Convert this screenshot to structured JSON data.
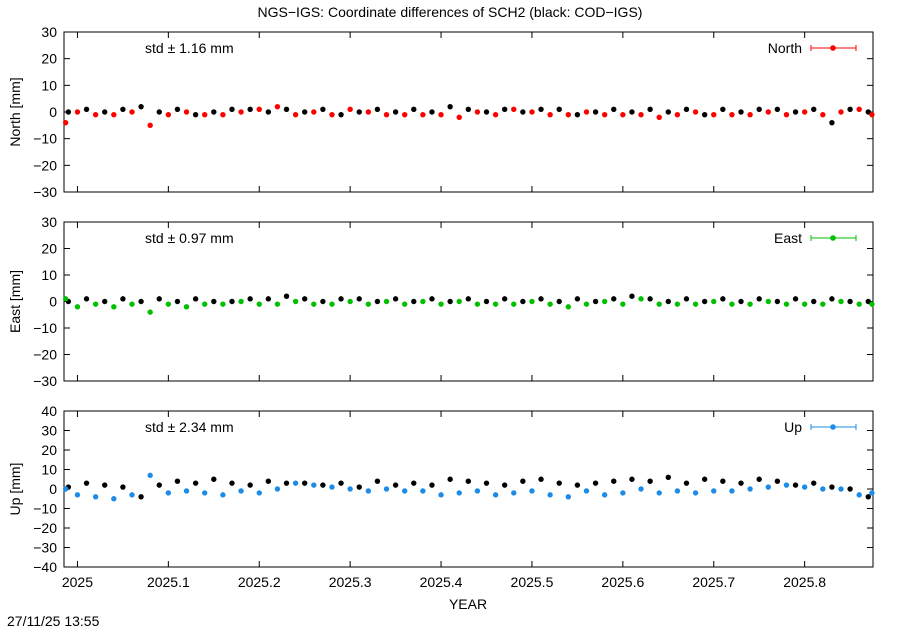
{
  "title": "NGS−IGS: Coordinate differences of SCH2 (black: COD−IGS)",
  "timestamp": "27/11/25 13:55",
  "xlabel": "YEAR",
  "colors": {
    "north": "#ff0000",
    "east": "#00c000",
    "up": "#1e8ce6",
    "reference": "#000000"
  },
  "chart_data": [
    {
      "type": "scatter",
      "panel": "North",
      "ylabel": "North [mm]",
      "std_label": "std ± 1.16 mm",
      "legend": "North",
      "legend_placement": "top-right",
      "xlim": [
        2024.9852,
        2025.8752
      ],
      "ylim": [
        -30,
        30
      ],
      "yticks": [
        "30",
        "20",
        "10",
        "0",
        "−10",
        "−20",
        "−30"
      ],
      "xticks": [],
      "grid": false,
      "series": [
        {
          "name": "North",
          "color": "#ff0000",
          "x": [
            2024.987,
            2025.0,
            2025.02,
            2025.04,
            2025.06,
            2025.08,
            2025.1,
            2025.12,
            2025.14,
            2025.16,
            2025.18,
            2025.2,
            2025.22,
            2025.24,
            2025.26,
            2025.28,
            2025.3,
            2025.32,
            2025.34,
            2025.36,
            2025.38,
            2025.4,
            2025.42,
            2025.44,
            2025.46,
            2025.48,
            2025.5,
            2025.52,
            2025.54,
            2025.56,
            2025.58,
            2025.6,
            2025.62,
            2025.64,
            2025.66,
            2025.68,
            2025.7,
            2025.72,
            2025.74,
            2025.76,
            2025.78,
            2025.8,
            2025.82,
            2025.84,
            2025.86,
            2025.874
          ],
          "y": [
            -4,
            0,
            -1,
            -1,
            0,
            -5,
            -1,
            0,
            -1,
            -1,
            0,
            1,
            2,
            -1,
            0,
            -1,
            1,
            0,
            -1,
            -1,
            -1,
            -1,
            -2,
            0,
            -1,
            1,
            0,
            -1,
            -1,
            0,
            -1,
            -1,
            -1,
            -2,
            -1,
            0,
            -1,
            -1,
            -1,
            0,
            -1,
            0,
            -1,
            0,
            1,
            -1
          ]
        },
        {
          "name": "COD−IGS",
          "color": "#000000",
          "x": [
            2024.99,
            2025.01,
            2025.03,
            2025.05,
            2025.07,
            2025.09,
            2025.11,
            2025.13,
            2025.15,
            2025.17,
            2025.19,
            2025.21,
            2025.23,
            2025.25,
            2025.27,
            2025.29,
            2025.31,
            2025.33,
            2025.35,
            2025.37,
            2025.39,
            2025.41,
            2025.43,
            2025.45,
            2025.47,
            2025.49,
            2025.51,
            2025.53,
            2025.55,
            2025.57,
            2025.59,
            2025.61,
            2025.63,
            2025.65,
            2025.67,
            2025.69,
            2025.71,
            2025.73,
            2025.75,
            2025.77,
            2025.79,
            2025.81,
            2025.83,
            2025.85,
            2025.87
          ],
          "y": [
            0,
            1,
            0,
            1,
            2,
            0,
            1,
            -1,
            0,
            1,
            1,
            0,
            1,
            0,
            1,
            -1,
            0,
            1,
            0,
            1,
            0,
            2,
            1,
            0,
            1,
            0,
            1,
            1,
            -1,
            0,
            1,
            0,
            1,
            0,
            1,
            -1,
            1,
            0,
            1,
            1,
            0,
            1,
            -4,
            1,
            0
          ]
        }
      ]
    },
    {
      "type": "scatter",
      "panel": "East",
      "ylabel": "East [mm]",
      "std_label": "std ± 0.97 mm",
      "legend": "East",
      "legend_placement": "top-right",
      "xlim": [
        2024.9852,
        2025.8752
      ],
      "ylim": [
        -30,
        30
      ],
      "yticks": [
        "30",
        "20",
        "10",
        "0",
        "−10",
        "−20",
        "−30"
      ],
      "xticks": [],
      "grid": false,
      "series": [
        {
          "name": "East",
          "color": "#00c000",
          "x": [
            2024.987,
            2025.0,
            2025.02,
            2025.04,
            2025.06,
            2025.08,
            2025.1,
            2025.12,
            2025.14,
            2025.16,
            2025.18,
            2025.2,
            2025.22,
            2025.24,
            2025.26,
            2025.28,
            2025.3,
            2025.32,
            2025.34,
            2025.36,
            2025.38,
            2025.4,
            2025.42,
            2025.44,
            2025.46,
            2025.48,
            2025.5,
            2025.52,
            2025.54,
            2025.56,
            2025.58,
            2025.6,
            2025.62,
            2025.64,
            2025.66,
            2025.68,
            2025.7,
            2025.72,
            2025.74,
            2025.76,
            2025.78,
            2025.8,
            2025.82,
            2025.84,
            2025.86,
            2025.874
          ],
          "y": [
            1,
            -2,
            -1,
            -2,
            -1,
            -4,
            -1,
            -2,
            -1,
            -1,
            0,
            -1,
            -1,
            0,
            -1,
            -1,
            0,
            -1,
            0,
            -1,
            0,
            -1,
            0,
            -1,
            -1,
            -1,
            0,
            -1,
            -2,
            -1,
            0,
            -1,
            1,
            -1,
            -1,
            -1,
            0,
            -1,
            -1,
            0,
            -1,
            -1,
            -1,
            0,
            -1,
            -1
          ]
        },
        {
          "name": "COD−IGS",
          "color": "#000000",
          "x": [
            2024.99,
            2025.01,
            2025.03,
            2025.05,
            2025.07,
            2025.09,
            2025.11,
            2025.13,
            2025.15,
            2025.17,
            2025.19,
            2025.21,
            2025.23,
            2025.25,
            2025.27,
            2025.29,
            2025.31,
            2025.33,
            2025.35,
            2025.37,
            2025.39,
            2025.41,
            2025.43,
            2025.45,
            2025.47,
            2025.49,
            2025.51,
            2025.53,
            2025.55,
            2025.57,
            2025.59,
            2025.61,
            2025.63,
            2025.65,
            2025.67,
            2025.69,
            2025.71,
            2025.73,
            2025.75,
            2025.77,
            2025.79,
            2025.81,
            2025.83,
            2025.85,
            2025.87
          ],
          "y": [
            0,
            1,
            0,
            1,
            0,
            1,
            0,
            1,
            0,
            0,
            1,
            1,
            2,
            1,
            0,
            1,
            1,
            0,
            1,
            0,
            1,
            0,
            1,
            0,
            1,
            0,
            1,
            0,
            1,
            0,
            1,
            2,
            1,
            0,
            1,
            0,
            1,
            0,
            1,
            0,
            1,
            0,
            1,
            0,
            0
          ]
        }
      ]
    },
    {
      "type": "scatter",
      "panel": "Up",
      "ylabel": "Up [mm]",
      "std_label": "std ± 2.34 mm",
      "legend": "Up",
      "legend_placement": "top-right",
      "xlim": [
        2024.9852,
        2025.8752
      ],
      "ylim": [
        -40,
        40
      ],
      "yticks": [
        "40",
        "30",
        "20",
        "10",
        "0",
        "−10",
        "−20",
        "−30",
        "−40"
      ],
      "xticks": [
        "2025",
        "2025.1",
        "2025.2",
        "2025.3",
        "2025.4",
        "2025.5",
        "2025.6",
        "2025.7",
        "2025.8"
      ],
      "grid": false,
      "series": [
        {
          "name": "Up",
          "color": "#1e8ce6",
          "x": [
            2024.987,
            2025.0,
            2025.02,
            2025.04,
            2025.06,
            2025.08,
            2025.1,
            2025.12,
            2025.14,
            2025.16,
            2025.18,
            2025.2,
            2025.22,
            2025.24,
            2025.26,
            2025.28,
            2025.3,
            2025.32,
            2025.34,
            2025.36,
            2025.38,
            2025.4,
            2025.42,
            2025.44,
            2025.46,
            2025.48,
            2025.5,
            2025.52,
            2025.54,
            2025.56,
            2025.58,
            2025.6,
            2025.62,
            2025.64,
            2025.66,
            2025.68,
            2025.7,
            2025.72,
            2025.74,
            2025.76,
            2025.78,
            2025.8,
            2025.82,
            2025.84,
            2025.86,
            2025.874
          ],
          "y": [
            0,
            -3,
            -4,
            -5,
            -3,
            7,
            -2,
            -1,
            -2,
            -3,
            -1,
            -2,
            0,
            3,
            2,
            1,
            0,
            -1,
            0,
            -1,
            -1,
            -3,
            -2,
            -1,
            -3,
            -2,
            -1,
            -3,
            -4,
            -1,
            -3,
            -2,
            0,
            -2,
            -1,
            -2,
            -1,
            -1,
            0,
            1,
            2,
            1,
            0,
            0,
            -3,
            -2
          ]
        },
        {
          "name": "COD−IGS",
          "color": "#000000",
          "x": [
            2024.99,
            2025.01,
            2025.03,
            2025.05,
            2025.07,
            2025.09,
            2025.11,
            2025.13,
            2025.15,
            2025.17,
            2025.19,
            2025.21,
            2025.23,
            2025.25,
            2025.27,
            2025.29,
            2025.31,
            2025.33,
            2025.35,
            2025.37,
            2025.39,
            2025.41,
            2025.43,
            2025.45,
            2025.47,
            2025.49,
            2025.51,
            2025.53,
            2025.55,
            2025.57,
            2025.59,
            2025.61,
            2025.63,
            2025.65,
            2025.67,
            2025.69,
            2025.71,
            2025.73,
            2025.75,
            2025.77,
            2025.79,
            2025.81,
            2025.83,
            2025.85,
            2025.87
          ],
          "y": [
            1,
            3,
            2,
            1,
            -4,
            2,
            4,
            3,
            5,
            3,
            2,
            4,
            3,
            3,
            2,
            3,
            1,
            4,
            2,
            3,
            2,
            5,
            4,
            3,
            2,
            4,
            5,
            3,
            2,
            3,
            4,
            5,
            4,
            6,
            3,
            5,
            4,
            3,
            5,
            4,
            2,
            3,
            1,
            0,
            -4
          ]
        }
      ]
    }
  ]
}
